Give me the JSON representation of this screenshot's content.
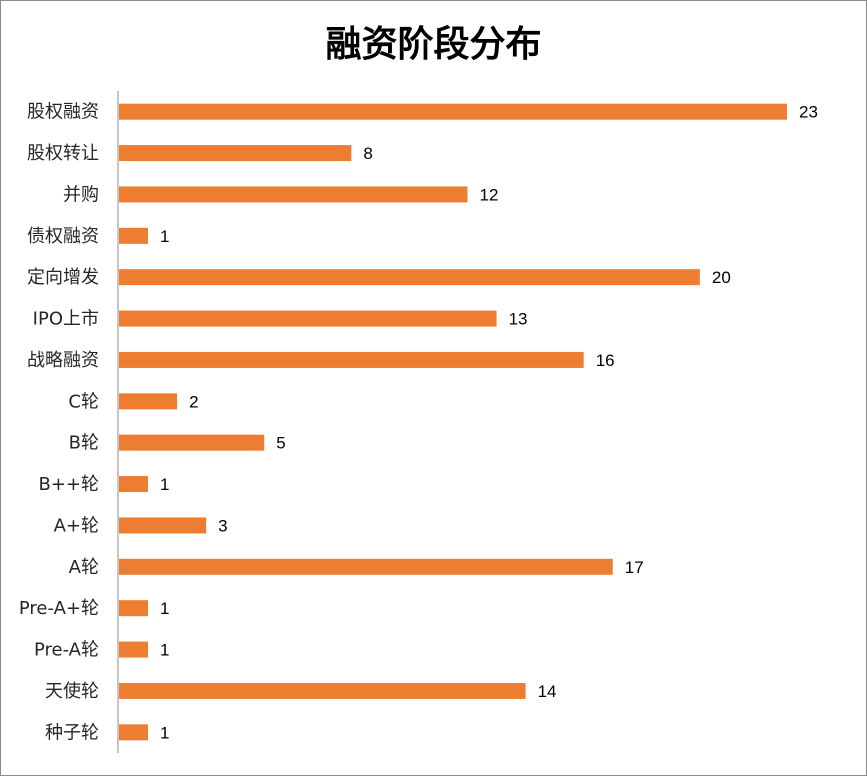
{
  "chart_data": {
    "type": "bar",
    "orientation": "horizontal",
    "title": "融资阶段分布",
    "xlabel": "",
    "ylabel": "",
    "categories": [
      "股权融资",
      "股权转让",
      "并购",
      "债权融资",
      "定向增发",
      "IPO上市",
      "战略融资",
      "C轮",
      "B轮",
      "B++轮",
      "A+轮",
      "A轮",
      "Pre-A+轮",
      "Pre-A轮",
      "天使轮",
      "种子轮"
    ],
    "values": [
      23,
      8,
      12,
      1,
      20,
      13,
      16,
      2,
      5,
      1,
      3,
      17,
      1,
      1,
      14,
      1
    ],
    "xlim": [
      0,
      23
    ],
    "grid": false,
    "legend": "none",
    "data_labels": true,
    "bar_color": "#ED7D31",
    "axis_color": "#8c8c8c"
  }
}
